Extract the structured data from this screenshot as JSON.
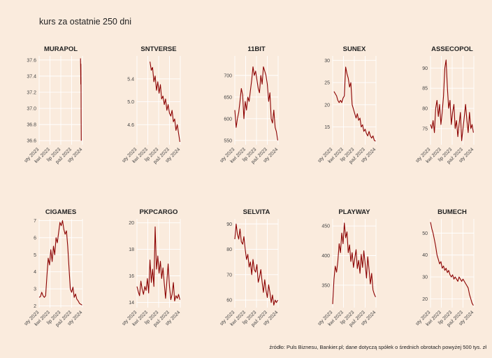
{
  "title": "kurs za ostatnie 250 dni",
  "caption": "źródło: Puls Biznesu, Bankier.pl; dane dotyczą spółek o średnich obrotach powyżej 500 tys. zł",
  "colors": {
    "background": "#faebdd",
    "line": "#8b0000",
    "grid": "#ffffff"
  },
  "chart_data": [
    {
      "type": "line",
      "title": "MURAPOL",
      "yticks": [
        36.6,
        36.8,
        37.0,
        37.2,
        37.4,
        37.6
      ],
      "ytick_labels": [
        "36.6",
        "36.8",
        "37.0",
        "37.2",
        "37.4",
        "37.6"
      ],
      "ylim": [
        36.55,
        37.65
      ],
      "xticks": [
        "sty 2023",
        "kwi 2023",
        "lip 2023",
        "paź 2023",
        "sty 2024"
      ],
      "xlim": [
        0,
        1
      ],
      "x": [
        0.955,
        0.958,
        0.961,
        0.963,
        0.965,
        0.967,
        0.97,
        0.972
      ],
      "y": [
        37.62,
        37.5,
        37.3,
        37.55,
        37.45,
        37.2,
        36.9,
        36.6
      ]
    },
    {
      "type": "line",
      "title": "SNTVERSE",
      "yticks": [
        4.6,
        5.0,
        5.4
      ],
      "ytick_labels": [
        "4.6",
        "5.0",
        "5.4"
      ],
      "ylim": [
        4.25,
        5.8
      ],
      "xticks": [
        "sty 2023",
        "kwi 2023",
        "lip 2023",
        "paź 2023",
        "sty 2024"
      ],
      "xlim": [
        0,
        1
      ],
      "x": [
        0.3,
        0.33,
        0.36,
        0.39,
        0.42,
        0.45,
        0.48,
        0.51,
        0.54,
        0.57,
        0.6,
        0.63,
        0.66,
        0.69,
        0.72,
        0.75,
        0.78,
        0.81,
        0.84,
        0.87,
        0.9,
        0.93,
        0.96,
        0.99
      ],
      "y": [
        5.7,
        5.55,
        5.6,
        5.35,
        5.45,
        5.2,
        5.35,
        5.15,
        5.3,
        5.05,
        5.1,
        4.95,
        5.05,
        4.85,
        4.95,
        4.8,
        4.75,
        4.85,
        4.65,
        4.7,
        4.5,
        4.6,
        4.45,
        4.3
      ]
    },
    {
      "type": "line",
      "title": "11BIT",
      "yticks": [
        550,
        600,
        650,
        700
      ],
      "ytick_labels": [
        "550",
        "600",
        "650",
        "700"
      ],
      "ylim": [
        540,
        745
      ],
      "xticks": [
        "sty 2023",
        "kwi 2023",
        "lip 2023",
        "paź 2023",
        "sty 2024"
      ],
      "xlim": [
        0,
        1
      ],
      "x": [
        0.0,
        0.03,
        0.06,
        0.09,
        0.12,
        0.15,
        0.18,
        0.21,
        0.24,
        0.27,
        0.3,
        0.33,
        0.36,
        0.39,
        0.42,
        0.45,
        0.48,
        0.51,
        0.54,
        0.57,
        0.6,
        0.63,
        0.66,
        0.69,
        0.72,
        0.75,
        0.78,
        0.81,
        0.84,
        0.87,
        0.9,
        0.93,
        0.96,
        0.99
      ],
      "y": [
        620,
        580,
        600,
        615,
        640,
        670,
        655,
        600,
        640,
        620,
        650,
        640,
        665,
        690,
        720,
        700,
        710,
        690,
        670,
        660,
        700,
        680,
        720,
        710,
        700,
        680,
        640,
        660,
        600,
        590,
        620,
        580,
        570,
        550
      ]
    },
    {
      "type": "line",
      "title": "SUNEX",
      "yticks": [
        15,
        20,
        25,
        30
      ],
      "ytick_labels": [
        "15",
        "20",
        "25",
        "30"
      ],
      "ylim": [
        11,
        31
      ],
      "xticks": [
        "sty 2023",
        "kwi 2023",
        "lip 2023",
        "paź 2023",
        "sty 2024"
      ],
      "xlim": [
        0,
        1
      ],
      "x": [
        0.03,
        0.06,
        0.09,
        0.12,
        0.15,
        0.18,
        0.21,
        0.24,
        0.27,
        0.3,
        0.33,
        0.36,
        0.39,
        0.42,
        0.45,
        0.48,
        0.51,
        0.54,
        0.57,
        0.6,
        0.63,
        0.66,
        0.69,
        0.72,
        0.75,
        0.78,
        0.81,
        0.84,
        0.87,
        0.9,
        0.93,
        0.96,
        0.99
      ],
      "y": [
        23,
        22.5,
        22,
        21,
        20.5,
        21,
        20.5,
        21.5,
        22,
        28.5,
        27,
        26,
        24,
        25,
        20,
        19,
        18,
        17,
        18,
        16.5,
        17,
        15,
        15.5,
        14,
        14.5,
        13.5,
        13,
        14,
        13,
        12.5,
        13,
        12,
        11.8
      ]
    },
    {
      "type": "line",
      "title": "ASSECOPOL",
      "yticks": [
        75,
        80,
        85,
        90
      ],
      "ytick_labels": [
        "75",
        "80",
        "85",
        "90"
      ],
      "ylim": [
        71,
        93
      ],
      "xticks": [
        "sty 2023",
        "kwi 2023",
        "lip 2023",
        "paź 2023",
        "sty 2024"
      ],
      "xlim": [
        0,
        1
      ],
      "x": [
        0.0,
        0.03,
        0.06,
        0.09,
        0.12,
        0.15,
        0.18,
        0.21,
        0.24,
        0.27,
        0.3,
        0.33,
        0.36,
        0.39,
        0.42,
        0.45,
        0.48,
        0.51,
        0.54,
        0.57,
        0.6,
        0.63,
        0.66,
        0.69,
        0.72,
        0.75,
        0.78,
        0.81,
        0.84,
        0.87,
        0.9,
        0.93,
        0.96,
        0.99
      ],
      "y": [
        76,
        75,
        77,
        74,
        80,
        82,
        78,
        81,
        76,
        79,
        83,
        90,
        92,
        85,
        80,
        82,
        76,
        79,
        81,
        75,
        77,
        73,
        76,
        79,
        72,
        75,
        78,
        81,
        77,
        74,
        79,
        75,
        76,
        74
      ]
    },
    {
      "type": "line",
      "title": "CIGAMES",
      "yticks": [
        2,
        3,
        4,
        5,
        6,
        7
      ],
      "ytick_labels": [
        "2",
        "3",
        "4",
        "5",
        "6",
        "7"
      ],
      "ylim": [
        1.9,
        7.1
      ],
      "xticks": [
        "sty 2023",
        "kwi 2023",
        "lip 2023",
        "paź 2023",
        "sty 2024"
      ],
      "xlim": [
        0,
        1
      ],
      "x": [
        0.0,
        0.03,
        0.06,
        0.09,
        0.12,
        0.15,
        0.18,
        0.21,
        0.24,
        0.27,
        0.3,
        0.33,
        0.36,
        0.39,
        0.42,
        0.45,
        0.48,
        0.51,
        0.54,
        0.57,
        0.6,
        0.63,
        0.66,
        0.69,
        0.72,
        0.75,
        0.78,
        0.81,
        0.84,
        0.87,
        0.9,
        0.93,
        0.96,
        0.99
      ],
      "y": [
        2.5,
        2.55,
        2.8,
        2.6,
        2.5,
        2.6,
        3.8,
        4.8,
        4.4,
        5.3,
        4.6,
        5.5,
        5.0,
        6.0,
        5.7,
        6.3,
        6.9,
        6.7,
        7.0,
        6.5,
        6.2,
        6.4,
        5.5,
        4.2,
        3.0,
        2.8,
        3.1,
        2.5,
        2.7,
        2.4,
        2.3,
        2.15,
        2.1,
        2.05
      ]
    },
    {
      "type": "line",
      "title": "PKPCARGO",
      "yticks": [
        14,
        16,
        18,
        20
      ],
      "ytick_labels": [
        "14",
        "16",
        "18",
        "20"
      ],
      "ylim": [
        13.6,
        20.3
      ],
      "xticks": [
        "sty 2023",
        "kwi 2023",
        "lip 2023",
        "paź 2023",
        "sty 2024"
      ],
      "xlim": [
        0,
        1
      ],
      "x": [
        0.0,
        0.03,
        0.06,
        0.09,
        0.12,
        0.15,
        0.18,
        0.21,
        0.24,
        0.27,
        0.3,
        0.33,
        0.36,
        0.39,
        0.42,
        0.45,
        0.48,
        0.51,
        0.54,
        0.57,
        0.6,
        0.63,
        0.66,
        0.69,
        0.72,
        0.75,
        0.78,
        0.81,
        0.84,
        0.87,
        0.9,
        0.93,
        0.96,
        0.99
      ],
      "y": [
        15.2,
        14.8,
        14.5,
        15.6,
        15.0,
        14.6,
        15.2,
        14.9,
        15.8,
        14.7,
        17.2,
        15.5,
        16.5,
        15.2,
        19.7,
        16.5,
        17.5,
        16.2,
        17.1,
        15.8,
        16.6,
        15.4,
        14.3,
        15.6,
        16.9,
        15.2,
        14.2,
        14.6,
        15.5,
        14.1,
        14.5,
        14.3,
        14.6,
        14.2
      ]
    },
    {
      "type": "line",
      "title": "SELVITA",
      "yticks": [
        60,
        70,
        80,
        90
      ],
      "ytick_labels": [
        "60",
        "70",
        "80",
        "90"
      ],
      "ylim": [
        57,
        92
      ],
      "xticks": [
        "sty 2023",
        "kwi 2023",
        "lip 2023",
        "paź 2023",
        "sty 2024"
      ],
      "xlim": [
        0,
        1
      ],
      "x": [
        0.0,
        0.03,
        0.06,
        0.09,
        0.12,
        0.15,
        0.18,
        0.21,
        0.24,
        0.27,
        0.3,
        0.33,
        0.36,
        0.39,
        0.42,
        0.45,
        0.48,
        0.51,
        0.54,
        0.57,
        0.6,
        0.63,
        0.66,
        0.69,
        0.72,
        0.75,
        0.78,
        0.81,
        0.84,
        0.87,
        0.9,
        0.93,
        0.96,
        0.99
      ],
      "y": [
        84,
        90,
        86,
        84,
        88,
        83,
        82,
        85,
        80,
        76,
        78,
        73,
        75,
        70,
        76,
        72,
        71,
        74,
        67,
        69,
        72,
        67,
        63,
        68,
        64,
        61,
        66,
        63,
        59,
        62,
        58,
        60,
        59,
        60
      ]
    },
    {
      "type": "line",
      "title": "PLAYWAY",
      "yticks": [
        350,
        400,
        450
      ],
      "ytick_labels": [
        "350",
        "400",
        "450"
      ],
      "ylim": [
        312,
        462
      ],
      "xticks": [
        "sty 2023",
        "kwi 2023",
        "lip 2023",
        "paź 2023",
        "sty 2024"
      ],
      "xlim": [
        0,
        1
      ],
      "x": [
        0.0,
        0.03,
        0.06,
        0.09,
        0.12,
        0.15,
        0.18,
        0.21,
        0.24,
        0.27,
        0.3,
        0.33,
        0.36,
        0.39,
        0.42,
        0.45,
        0.48,
        0.51,
        0.54,
        0.57,
        0.6,
        0.63,
        0.66,
        0.69,
        0.72,
        0.75,
        0.78,
        0.81,
        0.84,
        0.87,
        0.9,
        0.93,
        0.96,
        0.99
      ],
      "y": [
        318,
        360,
        382,
        372,
        390,
        420,
        405,
        438,
        420,
        455,
        430,
        440,
        405,
        418,
        390,
        405,
        380,
        395,
        410,
        378,
        392,
        370,
        402,
        380,
        408,
        386,
        362,
        398,
        376,
        352,
        370,
        342,
        335,
        330
      ]
    },
    {
      "type": "line",
      "title": "BUMECH",
      "yticks": [
        20,
        30,
        40,
        50
      ],
      "ytick_labels": [
        "20",
        "30",
        "40",
        "50"
      ],
      "ylim": [
        16,
        56.5
      ],
      "xticks": [
        "sty 2023",
        "kwi 2023",
        "lip 2023",
        "paź 2023",
        "sty 2024"
      ],
      "xlim": [
        0,
        1
      ],
      "x": [
        0.0,
        0.03,
        0.06,
        0.09,
        0.12,
        0.15,
        0.18,
        0.21,
        0.24,
        0.27,
        0.3,
        0.33,
        0.36,
        0.39,
        0.42,
        0.45,
        0.48,
        0.51,
        0.54,
        0.57,
        0.6,
        0.63,
        0.66,
        0.69,
        0.72,
        0.75,
        0.78,
        0.81,
        0.84,
        0.87,
        0.9,
        0.93,
        0.96,
        0.99
      ],
      "y": [
        55,
        52,
        50,
        47,
        44,
        40,
        38,
        36,
        37,
        34,
        35,
        33,
        34,
        32,
        33,
        31,
        30,
        31,
        29,
        30,
        29,
        28,
        30,
        29,
        28,
        29,
        28,
        27,
        26,
        25,
        22,
        20,
        18,
        17
      ]
    }
  ]
}
